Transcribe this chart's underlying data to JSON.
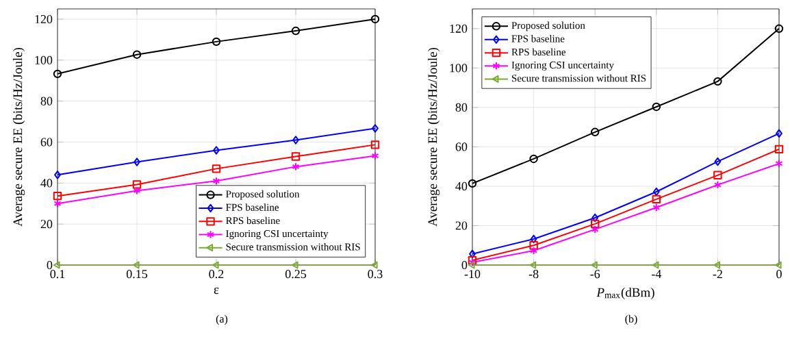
{
  "chart_data": [
    {
      "type": "line",
      "xlabel": "ε",
      "ylabel": "Average secure EE (bits/Hz/Joule)",
      "x": [
        0.1,
        0.15,
        0.2,
        0.25,
        0.3
      ],
      "xlim": [
        0.1,
        0.3
      ],
      "xticks": [
        0.1,
        0.15,
        0.2,
        0.25,
        0.3
      ],
      "ylim": [
        0,
        125
      ],
      "yticks": [
        0,
        20,
        40,
        60,
        80,
        100,
        120
      ],
      "grid": true,
      "legend": "bottom right",
      "line_style": "solid",
      "annotations": [
        "(a)"
      ],
      "series": [
        {
          "name": "Proposed solution",
          "color": "#000000",
          "marker": "circle",
          "values": [
            93.3,
            102.7,
            109,
            114.3,
            120
          ]
        },
        {
          "name": "FPS baseline",
          "color": "#0000ff",
          "marker": "diamond",
          "values": [
            44,
            50.3,
            56,
            61,
            66.7
          ]
        },
        {
          "name": "RPS baseline",
          "color": "#ff0000",
          "marker": "square",
          "values": [
            33.7,
            39.3,
            47,
            53,
            58.7
          ]
        },
        {
          "name": "Ignoring CSI uncertainty",
          "color": "#ff00ff",
          "marker": "cross",
          "values": [
            30,
            36.3,
            41,
            48,
            53.3
          ]
        },
        {
          "name": "Secure transmission without RIS",
          "color": "#77ac30",
          "marker": "triangle",
          "values": [
            0,
            0,
            0,
            0,
            0
          ]
        }
      ]
    },
    {
      "type": "line",
      "xlabel": "*P*$_{max}$(dBm)",
      "ylabel": "Average secure EE (bits/Hz/Joule)",
      "x": [
        -10,
        -8,
        -6,
        -4,
        -2,
        0
      ],
      "xlim": [
        -10,
        0
      ],
      "xticks": [
        -10,
        -8,
        -6,
        -4,
        -2,
        0
      ],
      "ylim": [
        0,
        130
      ],
      "yticks": [
        0,
        20,
        40,
        60,
        80,
        100,
        120
      ],
      "grid": true,
      "legend": "top left",
      "line_style": "solid",
      "annotations": [
        "(b)"
      ],
      "series": [
        {
          "name": "Proposed solution",
          "color": "#000000",
          "marker": "circle",
          "values": [
            41.4,
            53.9,
            67.5,
            80.3,
            93.2,
            120
          ]
        },
        {
          "name": "FPS baseline",
          "color": "#0000ff",
          "marker": "diamond",
          "values": [
            5.6,
            13.2,
            24,
            37.2,
            52.5,
            66.8
          ]
        },
        {
          "name": "RPS baseline",
          "color": "#ff0000",
          "marker": "square",
          "values": [
            2.4,
            10,
            20.9,
            33.4,
            45.6,
            58.8
          ]
        },
        {
          "name": "Ignoring CSI uncertainty",
          "color": "#ff00ff",
          "marker": "cross",
          "values": [
            1.4,
            7.3,
            18.1,
            29.2,
            40.7,
            51.5
          ]
        },
        {
          "name": "Secure transmission without RIS",
          "color": "#77ac30",
          "marker": "triangle",
          "values": [
            0,
            0,
            0,
            0,
            0,
            0
          ]
        }
      ]
    }
  ]
}
